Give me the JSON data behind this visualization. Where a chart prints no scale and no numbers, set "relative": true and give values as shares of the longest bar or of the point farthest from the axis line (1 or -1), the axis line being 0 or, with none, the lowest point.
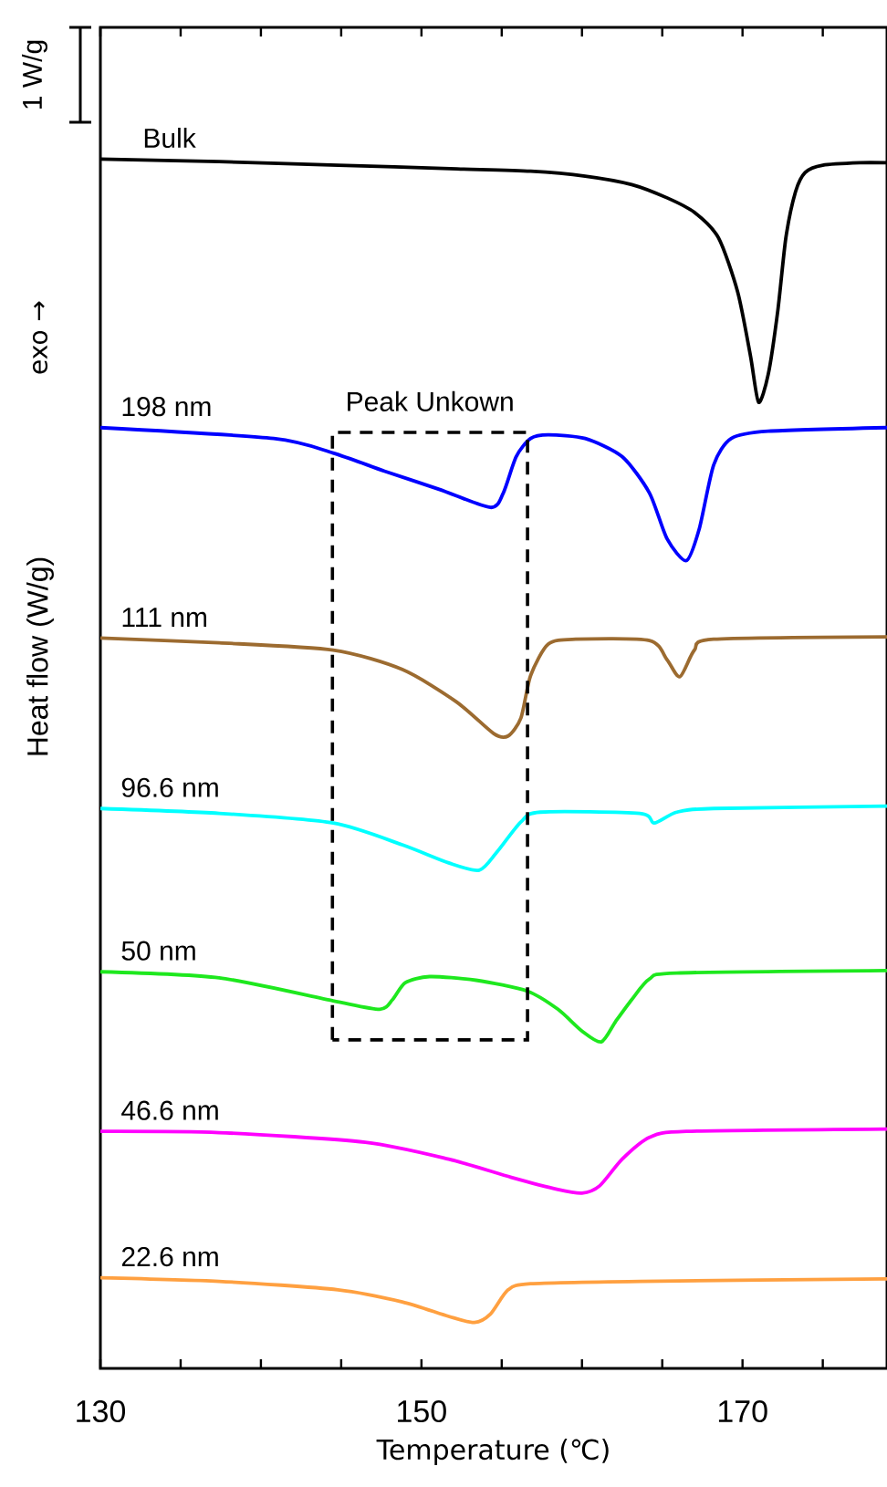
{
  "chart_data": {
    "type": "line",
    "relative": true,
    "xlabel": "Temperature (℃)",
    "ylabel": "Heat flow (W/g)",
    "annotations": [
      "1 W/g",
      "exo →",
      "Peak Unkown"
    ],
    "xlim": [
      130,
      179
    ],
    "xticks": [
      130,
      {
        "value": 135,
        "label": null
      },
      {
        "value": 140,
        "label": null
      },
      {
        "value": 145,
        "label": null
      },
      150,
      {
        "value": 155,
        "label": null
      },
      {
        "value": 160,
        "label": null
      },
      {
        "value": 165,
        "label": null
      },
      170,
      {
        "value": 175,
        "label": null
      }
    ],
    "series": [
      {
        "name": "Bulk",
        "color": "#000000",
        "x": [
          130,
          137.4,
          144.8,
          152.2,
          156.8,
          160.2,
          163.1,
          165.3,
          167.0,
          168.5,
          169.7,
          170.5,
          171.0,
          171.6,
          172.2,
          172.7,
          173.3,
          173.9,
          175.0,
          177.3,
          179
        ],
        "values": [
          1.0,
          0.998,
          0.995,
          0.992,
          0.99,
          0.986,
          0.979,
          0.968,
          0.956,
          0.935,
          0.89,
          0.837,
          0.799,
          0.822,
          0.875,
          0.935,
          0.973,
          0.989,
          0.995,
          0.997,
          0.997
        ]
      },
      {
        "name": "198 nm",
        "color": "#0000ff",
        "x": [
          130,
          140.8,
          144.5,
          147.7,
          151.1,
          154.3,
          155.1,
          155.9,
          156.8,
          157.9,
          160.2,
          162.5,
          164.2,
          165.3,
          166.5,
          167.3,
          168.2,
          169.3,
          171.6,
          179
        ],
        "values": [
          0.778,
          0.769,
          0.757,
          0.742,
          0.727,
          0.712,
          0.724,
          0.754,
          0.769,
          0.772,
          0.769,
          0.754,
          0.724,
          0.686,
          0.668,
          0.694,
          0.747,
          0.769,
          0.775,
          0.778
        ]
      },
      {
        "name": "111 nm",
        "color": "#9c6b30",
        "x": [
          130,
          137.4,
          144.5,
          148.8,
          152.2,
          154.5,
          155.4,
          156.2,
          156.8,
          157.9,
          159.6,
          164.2,
          165.3,
          166.1,
          167.0,
          168.2,
          179
        ],
        "values": [
          0.604,
          0.6,
          0.594,
          0.578,
          0.551,
          0.525,
          0.523,
          0.538,
          0.573,
          0.599,
          0.603,
          0.602,
          0.586,
          0.572,
          0.594,
          0.603,
          0.605
        ]
      },
      {
        "name": "96.6 nm",
        "color": "#00ffff",
        "x": [
          130,
          137.4,
          144.5,
          148.8,
          151.7,
          153.6,
          154.7,
          156.2,
          157.4,
          163.6,
          164.5,
          165.9,
          168.2,
          179
        ],
        "values": [
          0.463,
          0.459,
          0.451,
          0.433,
          0.418,
          0.412,
          0.427,
          0.452,
          0.46,
          0.459,
          0.451,
          0.46,
          0.463,
          0.465
        ]
      },
      {
        "name": "50 nm",
        "color": "#1ee81e",
        "x": [
          130,
          137.4,
          144.5,
          147.4,
          148.2,
          149.0,
          150.5,
          153.4,
          156.6,
          158.5,
          160.0,
          161.2,
          162.1,
          163.1,
          164.2,
          165.9,
          179
        ],
        "values": [
          0.328,
          0.323,
          0.304,
          0.297,
          0.305,
          0.319,
          0.324,
          0.321,
          0.312,
          0.297,
          0.279,
          0.27,
          0.287,
          0.305,
          0.322,
          0.327,
          0.329
        ]
      },
      {
        "name": "46.6 nm",
        "color": "#ff00ff",
        "x": [
          130,
          137.4,
          146.5,
          151.7,
          155.6,
          158.5,
          160.0,
          161.1,
          162.5,
          164.2,
          166.5,
          179
        ],
        "values": [
          0.196,
          0.195,
          0.187,
          0.173,
          0.158,
          0.148,
          0.145,
          0.151,
          0.173,
          0.191,
          0.196,
          0.198
        ]
      },
      {
        "name": "22.6 nm",
        "color": "#ffa040",
        "x": [
          130,
          137.4,
          144.8,
          148.8,
          151.7,
          153.3,
          154.3,
          155.4,
          156.8,
          163.6,
          179
        ],
        "values": [
          0.075,
          0.072,
          0.065,
          0.055,
          0.043,
          0.038,
          0.045,
          0.065,
          0.07,
          0.072,
          0.074
        ]
      }
    ]
  }
}
